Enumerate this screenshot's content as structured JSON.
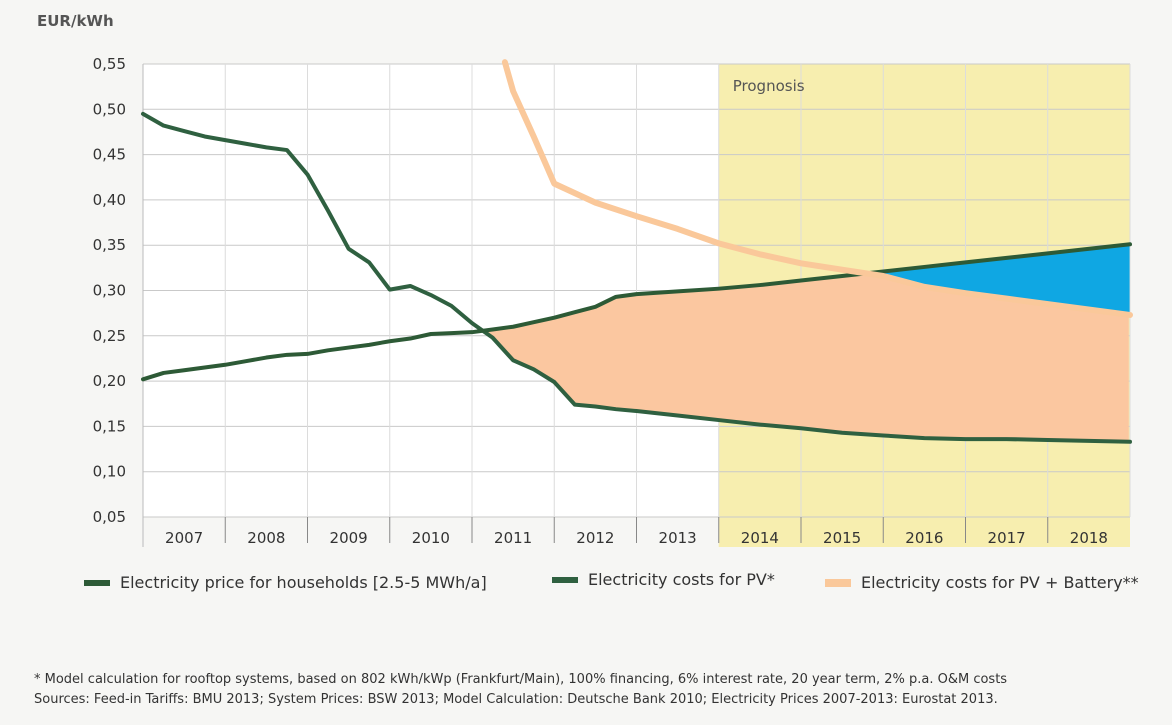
{
  "chart_data": {
    "type": "line",
    "ylabel": "EUR/kWh",
    "ylim": [
      0.05,
      0.55
    ],
    "yticks": [
      "0,55",
      "0,50",
      "0,45",
      "0,40",
      "0,35",
      "0,30",
      "0,25",
      "0,20",
      "0,15",
      "0,10",
      "0,05"
    ],
    "categories": [
      "2007",
      "2008",
      "2009",
      "2010",
      "2011",
      "2012",
      "2013",
      "2014",
      "2015",
      "2016",
      "2017",
      "2018"
    ],
    "prognosis": {
      "label": "Prognosis",
      "from_year": 2014
    },
    "series": [
      {
        "name": "Electricity price for households [2.5-5 MWh/a]",
        "color": "#2d5a36",
        "points": [
          [
            2007.0,
            0.202
          ],
          [
            2007.25,
            0.209
          ],
          [
            2007.5,
            0.212
          ],
          [
            2007.75,
            0.215
          ],
          [
            2008.0,
            0.218
          ],
          [
            2008.25,
            0.222
          ],
          [
            2008.5,
            0.226
          ],
          [
            2008.75,
            0.229
          ],
          [
            2009.0,
            0.23
          ],
          [
            2009.25,
            0.234
          ],
          [
            2009.5,
            0.237
          ],
          [
            2009.75,
            0.24
          ],
          [
            2010.0,
            0.244
          ],
          [
            2010.25,
            0.247
          ],
          [
            2010.5,
            0.252
          ],
          [
            2010.75,
            0.253
          ],
          [
            2011.0,
            0.254
          ],
          [
            2011.25,
            0.257
          ],
          [
            2011.5,
            0.26
          ],
          [
            2011.75,
            0.265
          ],
          [
            2012.0,
            0.27
          ],
          [
            2012.25,
            0.276
          ],
          [
            2012.5,
            0.282
          ],
          [
            2012.75,
            0.293
          ],
          [
            2013.0,
            0.296
          ],
          [
            2013.5,
            0.299
          ],
          [
            2014.0,
            0.302
          ],
          [
            2014.5,
            0.306
          ],
          [
            2015.0,
            0.311
          ],
          [
            2015.5,
            0.316
          ],
          [
            2016.0,
            0.321
          ],
          [
            2016.5,
            0.326
          ],
          [
            2017.0,
            0.331
          ],
          [
            2017.5,
            0.336
          ],
          [
            2018.0,
            0.341
          ]
        ]
      },
      {
        "name": "Electricity costs for PV*",
        "color": "#2f6040",
        "points": [
          [
            2007.0,
            0.495
          ],
          [
            2007.25,
            0.482
          ],
          [
            2007.5,
            0.476
          ],
          [
            2007.75,
            0.47
          ],
          [
            2008.0,
            0.466
          ],
          [
            2008.25,
            0.462
          ],
          [
            2008.5,
            0.458
          ],
          [
            2008.75,
            0.455
          ],
          [
            2009.0,
            0.428
          ],
          [
            2009.25,
            0.388
          ],
          [
            2009.5,
            0.346
          ],
          [
            2009.75,
            0.331
          ],
          [
            2010.0,
            0.301
          ],
          [
            2010.25,
            0.305
          ],
          [
            2010.5,
            0.295
          ],
          [
            2010.75,
            0.283
          ],
          [
            2011.0,
            0.264
          ],
          [
            2011.25,
            0.248
          ],
          [
            2011.5,
            0.223
          ],
          [
            2011.75,
            0.213
          ],
          [
            2012.0,
            0.199
          ],
          [
            2012.25,
            0.174
          ],
          [
            2012.5,
            0.172
          ],
          [
            2012.75,
            0.169
          ],
          [
            2013.0,
            0.167
          ],
          [
            2013.5,
            0.162
          ],
          [
            2014.0,
            0.157
          ],
          [
            2014.5,
            0.152
          ],
          [
            2015.0,
            0.148
          ],
          [
            2015.5,
            0.143
          ],
          [
            2016.0,
            0.14
          ],
          [
            2016.5,
            0.137
          ],
          [
            2017.0,
            0.136
          ],
          [
            2017.5,
            0.136
          ],
          [
            2018.0,
            0.135
          ]
        ]
      },
      {
        "name": "Electricity costs for PV + Battery**",
        "color": "#fac89a",
        "points": [
          [
            2011.4,
            0.552
          ],
          [
            2011.5,
            0.52
          ],
          [
            2011.75,
            0.47
          ],
          [
            2012.0,
            0.418
          ],
          [
            2012.5,
            0.397
          ],
          [
            2013.0,
            0.382
          ],
          [
            2013.5,
            0.368
          ],
          [
            2014.0,
            0.352
          ],
          [
            2014.5,
            0.34
          ],
          [
            2015.0,
            0.33
          ],
          [
            2015.5,
            0.323
          ],
          [
            2016.0,
            0.316
          ],
          [
            2016.5,
            0.304
          ],
          [
            2017.0,
            0.297
          ],
          [
            2017.5,
            0.291
          ],
          [
            2018.0,
            0.285
          ]
        ]
      }
    ],
    "fill_colors": {
      "pv_advantage": "#fbc7a0",
      "battery_advantage": "#0fa7e3",
      "prognosis_bg": "#f7eeaf"
    },
    "legend_position": "bottom"
  },
  "footnotes": [
    "* Model calculation for rooftop systems, based on 802 kWh/kWp (Frankfurt/Main), 100% financing, 6% interest rate, 20 year term, 2% p.a. O&M costs",
    "Sources: Feed-in Tariffs: BMU 2013; System Prices: BSW 2013; Model Calculation: Deutsche Bank 2010; Electricity Prices 2007-2013: Eurostat 2013."
  ]
}
